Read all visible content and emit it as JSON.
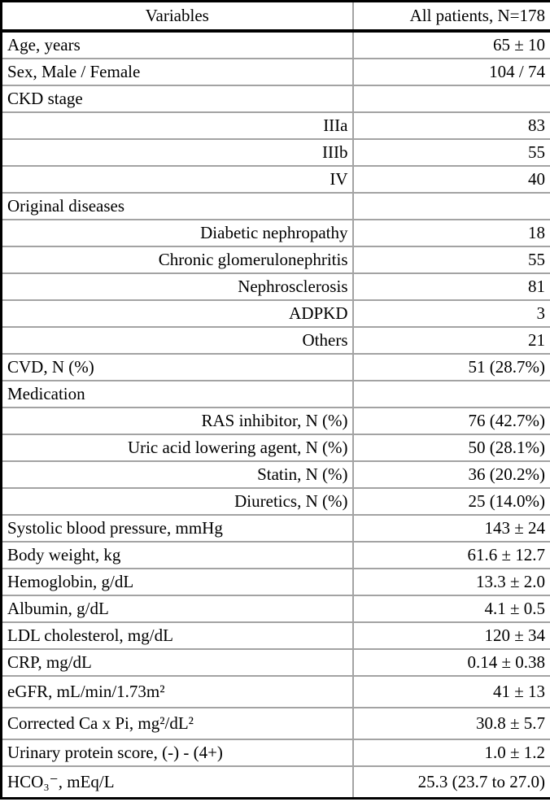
{
  "table": {
    "columns": [
      "Variables",
      "All patients, N=178"
    ],
    "rows": [
      {
        "label": "Age, years",
        "value": "65 ± 10"
      },
      {
        "label": "Sex, Male / Female",
        "value": "104 / 74"
      },
      {
        "label": "CKD stage",
        "value": ""
      },
      {
        "label": "IIIa",
        "value": "83"
      },
      {
        "label": "IIIb",
        "value": "55"
      },
      {
        "label": "IV",
        "value": "40"
      },
      {
        "label": "Original diseases",
        "value": ""
      },
      {
        "label": "Diabetic nephropathy",
        "value": "18"
      },
      {
        "label": "Chronic glomerulonephritis",
        "value": "55"
      },
      {
        "label": "Nephrosclerosis",
        "value": "81"
      },
      {
        "label": "ADPKD",
        "value": "3"
      },
      {
        "label": "Others",
        "value": "21"
      },
      {
        "label": "CVD, N (%)",
        "value": "51 (28.7%)"
      },
      {
        "label": "Medication",
        "value": ""
      },
      {
        "label": "RAS inhibitor, N (%)",
        "value": "76 (42.7%)"
      },
      {
        "label": "Uric acid lowering agent, N (%)",
        "value": "50 (28.1%)"
      },
      {
        "label": "Statin, N (%)",
        "value": "36 (20.2%)"
      },
      {
        "label": "Diuretics, N (%)",
        "value": "25 (14.0%)"
      },
      {
        "label": "Systolic blood pressure, mmHg",
        "value": "143 ± 24"
      },
      {
        "label": "Body weight, kg",
        "value": "61.6 ± 12.7"
      },
      {
        "label": "Hemoglobin, g/dL",
        "value": "13.3 ± 2.0"
      },
      {
        "label": "Albumin, g/dL",
        "value": "4.1 ± 0.5"
      },
      {
        "label": "LDL cholesterol, mg/dL",
        "value": "120 ± 34"
      },
      {
        "label": "CRP, mg/dL",
        "value": "0.14 ± 0.38"
      },
      {
        "label": "eGFR, mL/min/1.73m²",
        "value": "41 ± 13"
      },
      {
        "label": "Corrected Ca x Pi, mg²/dL²",
        "value": "30.8 ± 5.7"
      },
      {
        "label": "Urinary protein score, (-) - (4+)",
        "value": "1.0 ± 1.2"
      },
      {
        "label": "HCO₃⁻, mEq/L",
        "value": "25.3 (23.7 to 27.0)"
      }
    ]
  }
}
